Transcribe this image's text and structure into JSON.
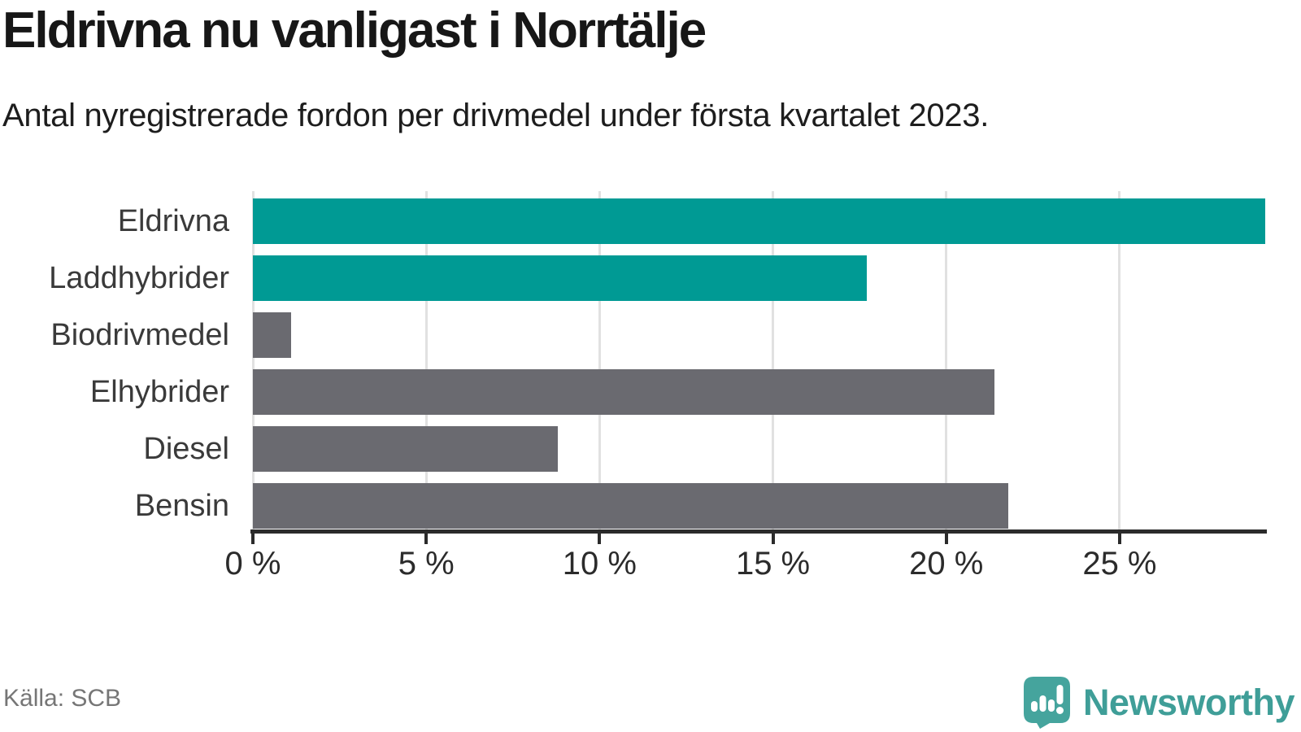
{
  "header": {
    "title": "Eldrivna nu vanligast i Norrtälje",
    "subtitle": "Antal nyregistrerade fordon per drivmedel under första kvartalet 2023."
  },
  "chart_data": {
    "type": "bar",
    "orientation": "horizontal",
    "title": "Eldrivna nu vanligast i Norrtälje",
    "categories": [
      "Eldrivna",
      "Laddhybrider",
      "Biodrivmedel",
      "Elhybrider",
      "Diesel",
      "Bensin"
    ],
    "values": [
      29.2,
      17.7,
      1.1,
      21.4,
      8.8,
      21.8
    ],
    "unit": "%",
    "xlim": [
      0,
      29.2
    ],
    "xticks": [
      0,
      5,
      10,
      15,
      20,
      25
    ],
    "xtick_labels": [
      "0 %",
      "5 %",
      "10 %",
      "15 %",
      "20 %",
      "25 %"
    ],
    "bar_colors": [
      "#009a94",
      "#009a94",
      "#6a6a70",
      "#6a6a70",
      "#6a6a70",
      "#6a6a70"
    ],
    "grid": true,
    "legend": "none",
    "xlabel": "",
    "ylabel": ""
  },
  "colors": {
    "highlight": "#009a94",
    "neutral": "#6a6a70",
    "axis": "#2b2b2b",
    "gridline": "#e1e1e1",
    "brand": "#3f9e98",
    "brand_icon": "#45a49d",
    "icon_glyph": "#ffffff"
  },
  "footer": {
    "source": "Källa: SCB",
    "brand": "Newsworthy"
  },
  "icons": {
    "brand_icon": "newsworthy-speech-bubble-chart-icon"
  }
}
